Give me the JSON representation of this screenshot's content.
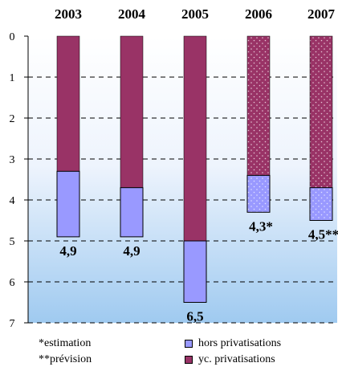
{
  "chart_data": {
    "type": "bar",
    "title": "",
    "xlabel": "",
    "ylabel": "",
    "categories": [
      "2003",
      "2004",
      "2005",
      "2006",
      "2007"
    ],
    "y_axis": {
      "min": 0,
      "max": 7,
      "inverted": true,
      "ticks": [
        "0",
        "1",
        "2",
        "3",
        "4",
        "5",
        "6",
        "7"
      ]
    },
    "grid": "dashed horizontal",
    "series": [
      {
        "name": "hors privatisations",
        "values": [
          4.9,
          4.9,
          6.5,
          4.3,
          4.5
        ],
        "color": "#9999ff"
      },
      {
        "name": "yc. privatisations",
        "values": [
          3.3,
          3.7,
          5.0,
          3.4,
          3.7
        ],
        "color": "#993366"
      }
    ],
    "hatched_categories": [
      "2006",
      "2007"
    ],
    "data_labels": [
      "4,9",
      "4,9",
      "6,5",
      "4,3*",
      "4,5**"
    ]
  },
  "notes": {
    "estimation": "*estimation",
    "prevision": "**prévision"
  },
  "legend": [
    {
      "label": "hors privatisations",
      "color": "#9999ff"
    },
    {
      "label": "yc. privatisations",
      "color": "#993366"
    }
  ]
}
